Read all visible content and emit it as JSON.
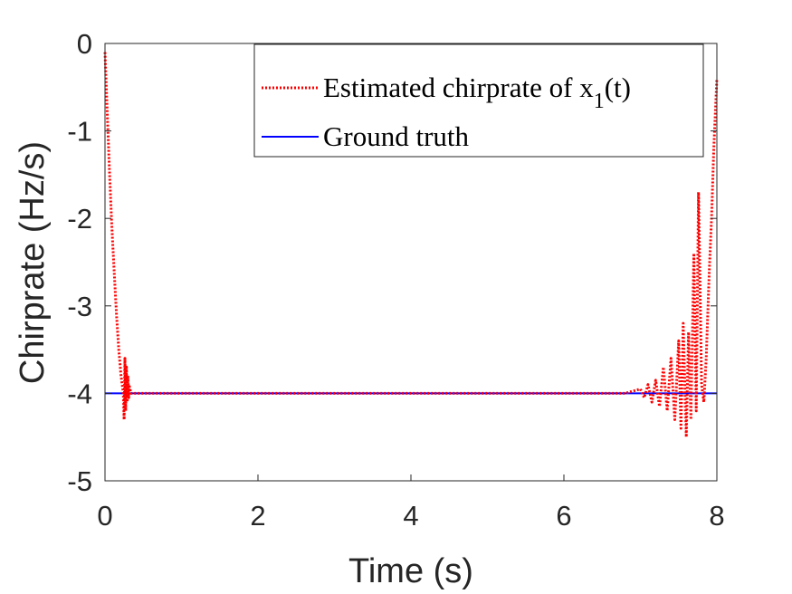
{
  "chart_data": {
    "type": "line",
    "xlabel": "Time (s)",
    "ylabel": "Chirprate (Hz/s)",
    "xlim": [
      0,
      8
    ],
    "ylim": [
      -5,
      0
    ],
    "xticks": [
      "0",
      "2",
      "4",
      "6",
      "8"
    ],
    "yticks": [
      "0",
      "-1",
      "-2",
      "-3",
      "-4",
      "-5"
    ],
    "grid": false,
    "legend_position": "top-right",
    "series": [
      {
        "name": "Estimated chirprate of x1(t)",
        "legend_main": "Estimated chirprate of x",
        "legend_sub": "1",
        "legend_tail": "(t)",
        "color": "#ff0000",
        "style": "dotted",
        "x": [
          0.0,
          0.03,
          0.06,
          0.09,
          0.12,
          0.15,
          0.18,
          0.21,
          0.24,
          0.25,
          0.26,
          0.27,
          0.28,
          0.29,
          0.3,
          0.31,
          0.32,
          0.34,
          0.36,
          0.4,
          0.5,
          1.0,
          2.0,
          3.0,
          4.0,
          5.0,
          6.0,
          6.8,
          7.0,
          7.05,
          7.1,
          7.15,
          7.2,
          7.25,
          7.3,
          7.35,
          7.4,
          7.45,
          7.5,
          7.53,
          7.56,
          7.6,
          7.63,
          7.66,
          7.7,
          7.73,
          7.76,
          7.8,
          7.83,
          7.86,
          7.9,
          7.93,
          7.96,
          8.0
        ],
        "y": [
          -0.1,
          -0.8,
          -1.5,
          -2.1,
          -2.6,
          -3.1,
          -3.5,
          -3.8,
          -4.0,
          -4.3,
          -3.6,
          -4.2,
          -3.7,
          -4.1,
          -3.8,
          -4.05,
          -3.92,
          -4.0,
          -4.0,
          -4.0,
          -4.0,
          -4.0,
          -4.0,
          -4.0,
          -4.0,
          -4.0,
          -4.0,
          -4.0,
          -3.95,
          -4.05,
          -3.9,
          -4.1,
          -3.85,
          -4.15,
          -3.7,
          -4.2,
          -3.6,
          -4.3,
          -3.4,
          -4.4,
          -3.2,
          -4.5,
          -3.3,
          -4.3,
          -2.4,
          -4.2,
          -1.7,
          -3.9,
          -4.1,
          -3.6,
          -2.6,
          -2.0,
          -1.2,
          -0.4
        ]
      },
      {
        "name": "Ground truth",
        "color": "#0000ff",
        "style": "solid",
        "x": [
          0,
          8
        ],
        "y": [
          -4,
          -4
        ]
      }
    ]
  }
}
